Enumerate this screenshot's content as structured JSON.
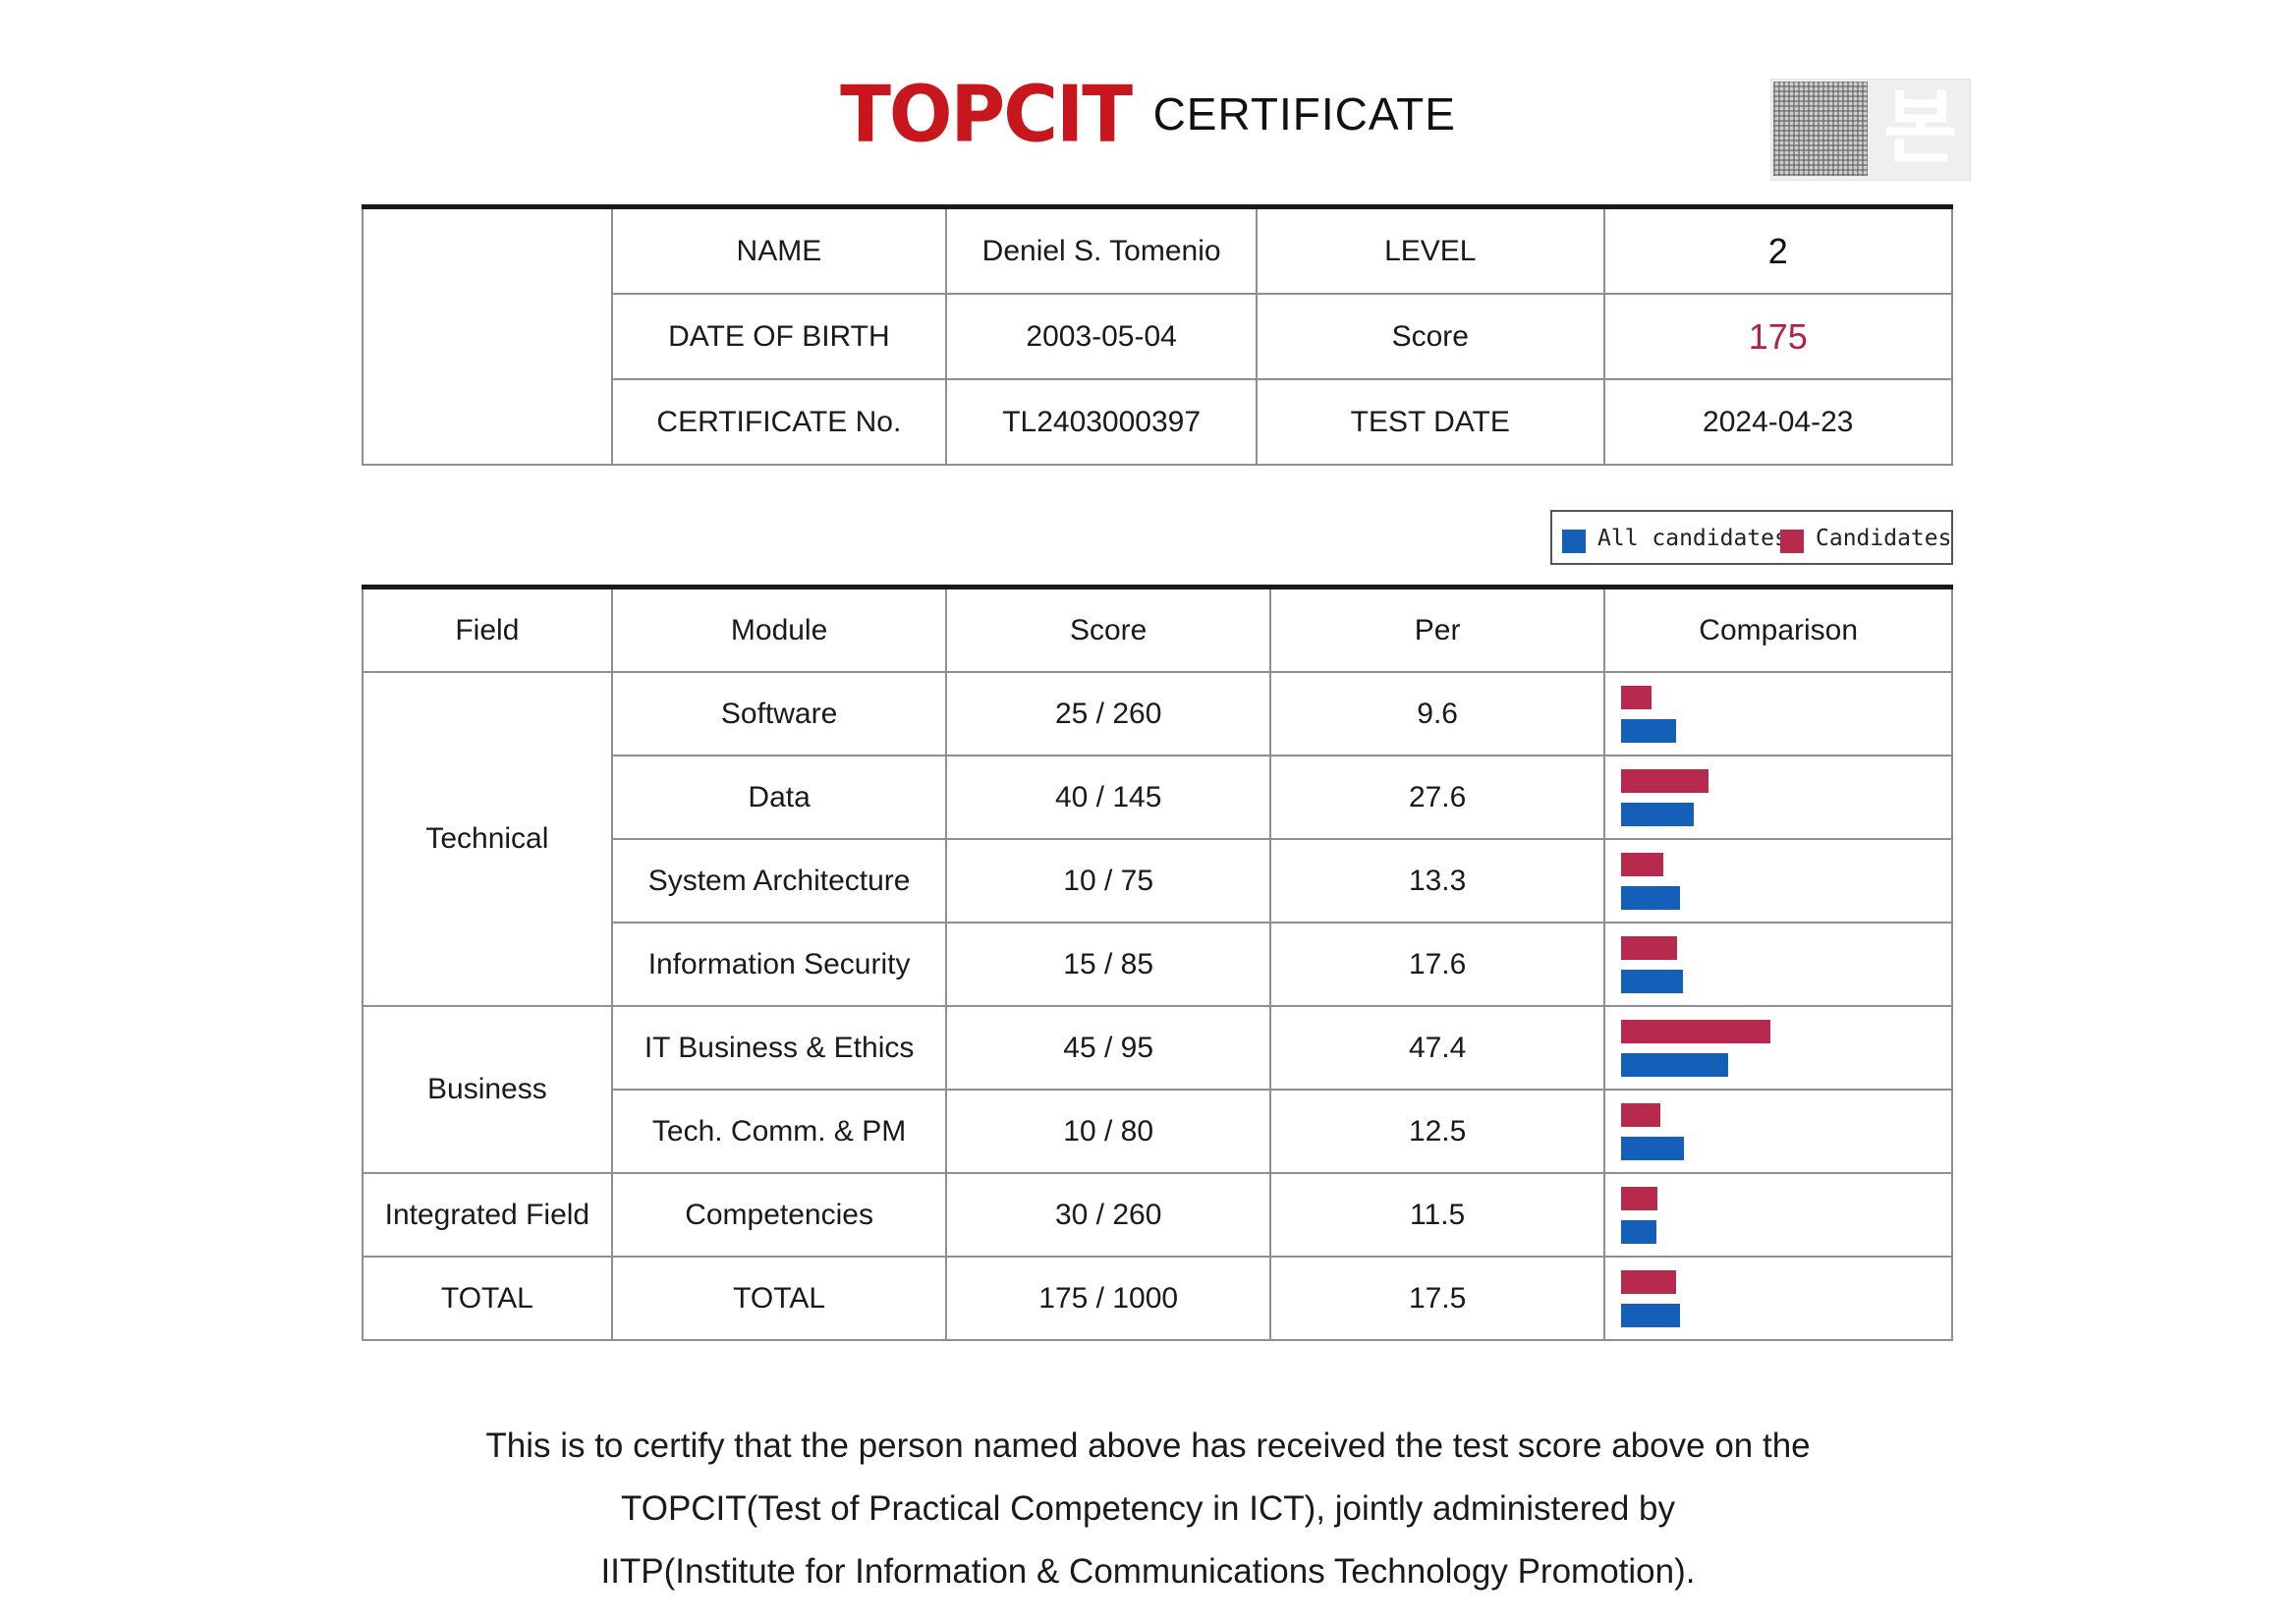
{
  "header": {
    "logo": "TOPCIT",
    "title": "CERTIFICATE",
    "stamp_glyph": "본"
  },
  "info": {
    "name_label": "NAME",
    "name_value": "Deniel S. Tomenio",
    "level_label": "LEVEL",
    "level_value": "2",
    "dob_label": "DATE OF BIRTH",
    "dob_value": "2003-05-04",
    "score_label": "Score",
    "score_value": "175",
    "cert_label": "CERTIFICATE No.",
    "cert_value": "TL2403000397",
    "test_date_label": "TEST DATE",
    "test_date_value": "2024-04-23"
  },
  "legend": {
    "all": "All candidates",
    "cand": "Candidates"
  },
  "colors": {
    "all": "#1460b8",
    "cand": "#b8294e",
    "brand": "#c8161d"
  },
  "table": {
    "headers": {
      "field": "Field",
      "module": "Module",
      "score": "Score",
      "per": "Per",
      "comparison": "Comparison"
    },
    "fields": {
      "technical": "Technical",
      "business": "Business",
      "integrated": "Integrated Field",
      "total": "TOTAL"
    },
    "rows": [
      {
        "module": "Software",
        "score": "25 / 260",
        "per": "9.6"
      },
      {
        "module": "Data",
        "score": "40 / 145",
        "per": "27.6"
      },
      {
        "module": "System Architecture",
        "score": "10 / 75",
        "per": "13.3"
      },
      {
        "module": "Information Security",
        "score": "15 / 85",
        "per": "17.6"
      },
      {
        "module": "IT Business & Ethics",
        "score": "45 / 95",
        "per": "47.4"
      },
      {
        "module": "Tech. Comm. & PM",
        "score": "10 / 80",
        "per": "12.5"
      },
      {
        "module": "Competencies",
        "score": "30 / 260",
        "per": "11.5"
      },
      {
        "module": "TOTAL",
        "score": "175 / 1000",
        "per": "17.5"
      }
    ]
  },
  "chart_data": {
    "type": "bar",
    "categories": [
      "Software",
      "Data",
      "System Architecture",
      "Information Security",
      "IT Business & Ethics",
      "Tech. Comm. & PM",
      "Competencies",
      "TOTAL"
    ],
    "series": [
      {
        "name": "Candidates",
        "values": [
          9.6,
          27.6,
          13.3,
          17.6,
          47.4,
          12.5,
          11.5,
          17.5
        ]
      },
      {
        "name": "All candidates",
        "values": [
          17.5,
          23,
          18.5,
          19.5,
          34,
          20,
          11,
          18.5
        ]
      }
    ],
    "orientation": "horizontal",
    "xlim": [
      0,
      100
    ]
  },
  "statement": {
    "line1": "This is to certify that the person named above has received the test score above on the",
    "line2": "TOPCIT(Test of Practical Competency in ICT), jointly administered by",
    "line3": "IITP(Institute for Information & Communications Technology Promotion)."
  }
}
